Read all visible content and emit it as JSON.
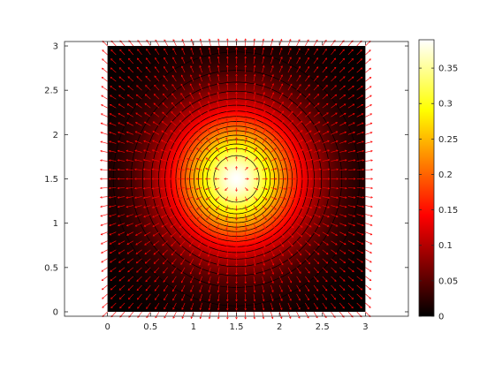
{
  "chart_data": {
    "type": "heatmap",
    "overlays": [
      "contour",
      "quiver"
    ],
    "colormap": "hot",
    "title": "",
    "xlabel": "",
    "ylabel": "",
    "xlim": [
      -0.5,
      3.5
    ],
    "ylim": [
      -0.05,
      3.05
    ],
    "x_ticks": [
      0,
      0.5,
      1,
      1.5,
      2,
      2.5,
      3
    ],
    "x_tick_labels": [
      "0",
      "0.5",
      "1",
      "1.5",
      "2",
      "2.5",
      "3"
    ],
    "y_ticks": [
      0,
      0.5,
      1,
      1.5,
      2,
      2.5,
      3
    ],
    "y_tick_labels": [
      "0",
      "0.5",
      "1",
      "1.5",
      "2",
      "2.5",
      "3"
    ],
    "domain_x": [
      0,
      3
    ],
    "domain_y": [
      0,
      3
    ],
    "peak": {
      "x": 1.5,
      "y": 1.5,
      "value": 0.39
    },
    "field": "f(x,y) = peak value * exp(-((x-1.5)^2 + (y-1.5)^2)^0.85 / 0.62)",
    "contour_levels": [
      0.01,
      0.02,
      0.04,
      0.06,
      0.08,
      0.1,
      0.12,
      0.14,
      0.16,
      0.18,
      0.2,
      0.22,
      0.24,
      0.26,
      0.28,
      0.3,
      0.33
    ],
    "quiver": {
      "direction": "outward from center (-grad f)",
      "color": "#ff0000",
      "grid_step": 0.1
    },
    "colorbar": {
      "min": 0,
      "max": 0.39,
      "ticks": [
        0,
        0.05,
        0.1,
        0.15,
        0.2,
        0.25,
        0.3,
        0.35
      ],
      "tick_labels": [
        "0",
        "0.05",
        "0.1",
        "0.15",
        "0.2",
        "0.25",
        "0.3",
        "0.35"
      ]
    }
  }
}
